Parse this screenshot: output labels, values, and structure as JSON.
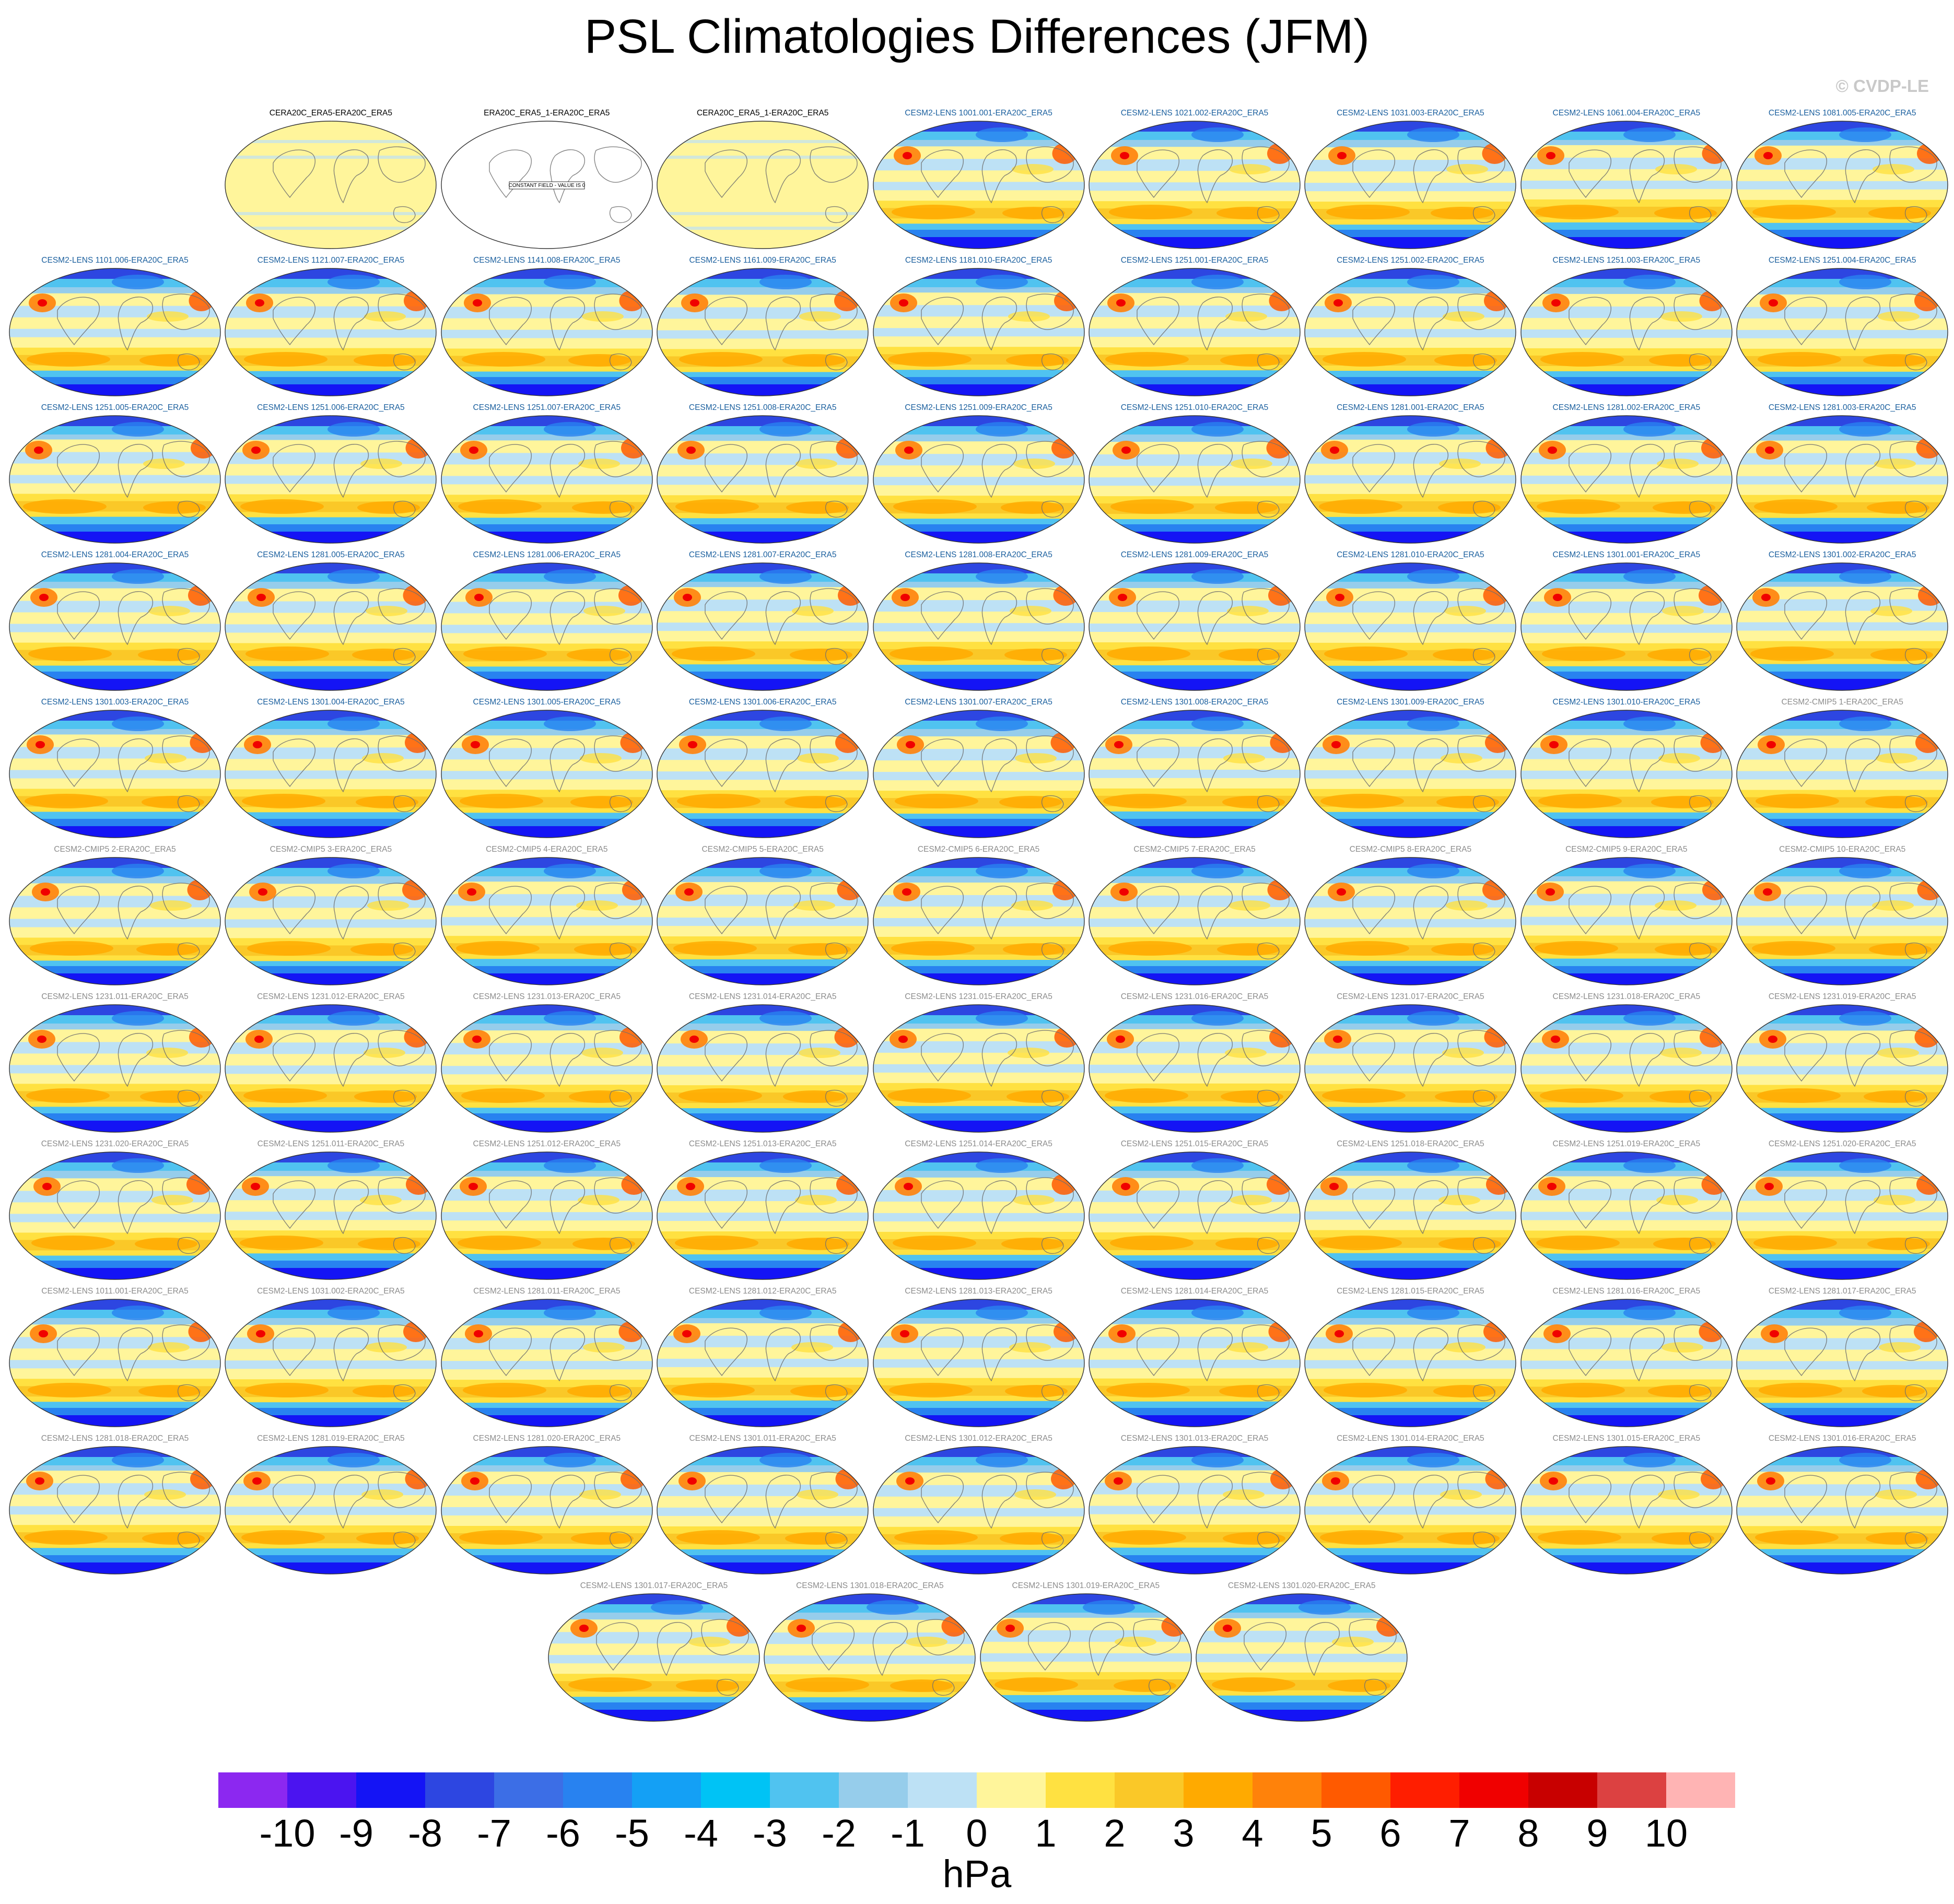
{
  "title": "PSL Climatologies Differences (JFM)",
  "watermark": "© CVDP-LE",
  "panels": [
    {
      "label": "CERA20C_ERA5-ERA20C_ERA5",
      "kind": "near-zero",
      "label_color": "#000000"
    },
    {
      "label": "ERA20C_ERA5_1-ERA20C_ERA5",
      "kind": "constant",
      "label_color": "#000000",
      "note": "CONSTANT FIELD - VALUE IS 0"
    },
    {
      "label": "CERA20C_ERA5_1-ERA20C_ERA5",
      "kind": "near-zero",
      "label_color": "#000000"
    },
    {
      "label": "CESM2-LENS 1001.001-ERA20C_ERA5",
      "kind": "diff",
      "label_color": "#1a5f9e"
    },
    {
      "label": "CESM2-LENS 1021.002-ERA20C_ERA5",
      "kind": "diff",
      "label_color": "#1a5f9e"
    },
    {
      "label": "CESM2-LENS 1031.003-ERA20C_ERA5",
      "kind": "diff",
      "label_color": "#1a5f9e"
    },
    {
      "label": "CESM2-LENS 1061.004-ERA20C_ERA5",
      "kind": "diff",
      "label_color": "#1a5f9e"
    },
    {
      "label": "CESM2-LENS 1081.005-ERA20C_ERA5",
      "kind": "diff",
      "label_color": "#1a5f9e"
    },
    {
      "label": "CESM2-LENS 1101.006-ERA20C_ERA5",
      "kind": "diff",
      "label_color": "#1a5f9e"
    },
    {
      "label": "CESM2-LENS 1121.007-ERA20C_ERA5",
      "kind": "diff",
      "label_color": "#1a5f9e"
    },
    {
      "label": "CESM2-LENS 1141.008-ERA20C_ERA5",
      "kind": "diff",
      "label_color": "#1a5f9e"
    },
    {
      "label": "CESM2-LENS 1161.009-ERA20C_ERA5",
      "kind": "diff",
      "label_color": "#1a5f9e"
    },
    {
      "label": "CESM2-LENS 1181.010-ERA20C_ERA5",
      "kind": "diff",
      "label_color": "#1a5f9e"
    },
    {
      "label": "CESM2-LENS 1251.001-ERA20C_ERA5",
      "kind": "diff",
      "label_color": "#1a5f9e"
    },
    {
      "label": "CESM2-LENS 1251.002-ERA20C_ERA5",
      "kind": "diff",
      "label_color": "#1a5f9e"
    },
    {
      "label": "CESM2-LENS 1251.003-ERA20C_ERA5",
      "kind": "diff",
      "label_color": "#1a5f9e"
    },
    {
      "label": "CESM2-LENS 1251.004-ERA20C_ERA5",
      "kind": "diff",
      "label_color": "#1a5f9e"
    },
    {
      "label": "CESM2-LENS 1251.005-ERA20C_ERA5",
      "kind": "diff",
      "label_color": "#1a5f9e"
    },
    {
      "label": "CESM2-LENS 1251.006-ERA20C_ERA5",
      "kind": "diff",
      "label_color": "#1a5f9e"
    },
    {
      "label": "CESM2-LENS 1251.007-ERA20C_ERA5",
      "kind": "diff",
      "label_color": "#1a5f9e"
    },
    {
      "label": "CESM2-LENS 1251.008-ERA20C_ERA5",
      "kind": "diff",
      "label_color": "#1a5f9e"
    },
    {
      "label": "CESM2-LENS 1251.009-ERA20C_ERA5",
      "kind": "diff",
      "label_color": "#1a5f9e"
    },
    {
      "label": "CESM2-LENS 1251.010-ERA20C_ERA5",
      "kind": "diff",
      "label_color": "#1a5f9e"
    },
    {
      "label": "CESM2-LENS 1281.001-ERA20C_ERA5",
      "kind": "diff",
      "label_color": "#1a5f9e"
    },
    {
      "label": "CESM2-LENS 1281.002-ERA20C_ERA5",
      "kind": "diff",
      "label_color": "#1a5f9e"
    },
    {
      "label": "CESM2-LENS 1281.003-ERA20C_ERA5",
      "kind": "diff",
      "label_color": "#1a5f9e"
    },
    {
      "label": "CESM2-LENS 1281.004-ERA20C_ERA5",
      "kind": "diff",
      "label_color": "#1a5f9e"
    },
    {
      "label": "CESM2-LENS 1281.005-ERA20C_ERA5",
      "kind": "diff",
      "label_color": "#1a5f9e"
    },
    {
      "label": "CESM2-LENS 1281.006-ERA20C_ERA5",
      "kind": "diff",
      "label_color": "#1a5f9e"
    },
    {
      "label": "CESM2-LENS 1281.007-ERA20C_ERA5",
      "kind": "diff",
      "label_color": "#1a5f9e"
    },
    {
      "label": "CESM2-LENS 1281.008-ERA20C_ERA5",
      "kind": "diff",
      "label_color": "#1a5f9e"
    },
    {
      "label": "CESM2-LENS 1281.009-ERA20C_ERA5",
      "kind": "diff",
      "label_color": "#1a5f9e"
    },
    {
      "label": "CESM2-LENS 1281.010-ERA20C_ERA5",
      "kind": "diff",
      "label_color": "#1a5f9e"
    },
    {
      "label": "CESM2-LENS 1301.001-ERA20C_ERA5",
      "kind": "diff",
      "label_color": "#1a5f9e"
    },
    {
      "label": "CESM2-LENS 1301.002-ERA20C_ERA5",
      "kind": "diff",
      "label_color": "#1a5f9e"
    },
    {
      "label": "CESM2-LENS 1301.003-ERA20C_ERA5",
      "kind": "diff",
      "label_color": "#1a5f9e"
    },
    {
      "label": "CESM2-LENS 1301.004-ERA20C_ERA5",
      "kind": "diff",
      "label_color": "#1a5f9e"
    },
    {
      "label": "CESM2-LENS 1301.005-ERA20C_ERA5",
      "kind": "diff",
      "label_color": "#1a5f9e"
    },
    {
      "label": "CESM2-LENS 1301.006-ERA20C_ERA5",
      "kind": "diff",
      "label_color": "#1a5f9e"
    },
    {
      "label": "CESM2-LENS 1301.007-ERA20C_ERA5",
      "kind": "diff",
      "label_color": "#1a5f9e"
    },
    {
      "label": "CESM2-LENS 1301.008-ERA20C_ERA5",
      "kind": "diff",
      "label_color": "#1a5f9e"
    },
    {
      "label": "CESM2-LENS 1301.009-ERA20C_ERA5",
      "kind": "diff",
      "label_color": "#1a5f9e"
    },
    {
      "label": "CESM2-LENS 1301.010-ERA20C_ERA5",
      "kind": "diff",
      "label_color": "#1a5f9e"
    },
    {
      "label": "CESM2-CMIP5 1-ERA20C_ERA5",
      "kind": "diff",
      "label_color": "#8c8c8c"
    },
    {
      "label": "CESM2-CMIP5 2-ERA20C_ERA5",
      "kind": "diff",
      "label_color": "#8c8c8c"
    },
    {
      "label": "CESM2-CMIP5 3-ERA20C_ERA5",
      "kind": "diff",
      "label_color": "#8c8c8c"
    },
    {
      "label": "CESM2-CMIP5 4-ERA20C_ERA5",
      "kind": "diff",
      "label_color": "#8c8c8c"
    },
    {
      "label": "CESM2-CMIP5 5-ERA20C_ERA5",
      "kind": "diff",
      "label_color": "#8c8c8c"
    },
    {
      "label": "CESM2-CMIP5 6-ERA20C_ERA5",
      "kind": "diff",
      "label_color": "#8c8c8c"
    },
    {
      "label": "CESM2-CMIP5 7-ERA20C_ERA5",
      "kind": "diff",
      "label_color": "#8c8c8c"
    },
    {
      "label": "CESM2-CMIP5 8-ERA20C_ERA5",
      "kind": "diff",
      "label_color": "#8c8c8c"
    },
    {
      "label": "CESM2-CMIP5 9-ERA20C_ERA5",
      "kind": "diff",
      "label_color": "#8c8c8c"
    },
    {
      "label": "CESM2-CMIP5 10-ERA20C_ERA5",
      "kind": "diff",
      "label_color": "#8c8c8c"
    },
    {
      "label": "CESM2-LENS 1231.011-ERA20C_ERA5",
      "kind": "diff",
      "label_color": "#8c8c8c"
    },
    {
      "label": "CESM2-LENS 1231.012-ERA20C_ERA5",
      "kind": "diff",
      "label_color": "#8c8c8c"
    },
    {
      "label": "CESM2-LENS 1231.013-ERA20C_ERA5",
      "kind": "diff",
      "label_color": "#8c8c8c"
    },
    {
      "label": "CESM2-LENS 1231.014-ERA20C_ERA5",
      "kind": "diff",
      "label_color": "#8c8c8c"
    },
    {
      "label": "CESM2-LENS 1231.015-ERA20C_ERA5",
      "kind": "diff",
      "label_color": "#8c8c8c"
    },
    {
      "label": "CESM2-LENS 1231.016-ERA20C_ERA5",
      "kind": "diff",
      "label_color": "#8c8c8c"
    },
    {
      "label": "CESM2-LENS 1231.017-ERA20C_ERA5",
      "kind": "diff",
      "label_color": "#8c8c8c"
    },
    {
      "label": "CESM2-LENS 1231.018-ERA20C_ERA5",
      "kind": "diff",
      "label_color": "#8c8c8c"
    },
    {
      "label": "CESM2-LENS 1231.019-ERA20C_ERA5",
      "kind": "diff",
      "label_color": "#8c8c8c"
    },
    {
      "label": "CESM2-LENS 1231.020-ERA20C_ERA5",
      "kind": "diff",
      "label_color": "#8c8c8c"
    },
    {
      "label": "CESM2-LENS 1251.011-ERA20C_ERA5",
      "kind": "diff",
      "label_color": "#8c8c8c"
    },
    {
      "label": "CESM2-LENS 1251.012-ERA20C_ERA5",
      "kind": "diff",
      "label_color": "#8c8c8c"
    },
    {
      "label": "CESM2-LENS 1251.013-ERA20C_ERA5",
      "kind": "diff",
      "label_color": "#8c8c8c"
    },
    {
      "label": "CESM2-LENS 1251.014-ERA20C_ERA5",
      "kind": "diff",
      "label_color": "#8c8c8c"
    },
    {
      "label": "CESM2-LENS 1251.015-ERA20C_ERA5",
      "kind": "diff",
      "label_color": "#8c8c8c"
    },
    {
      "label": "CESM2-LENS 1251.018-ERA20C_ERA5",
      "kind": "diff",
      "label_color": "#8c8c8c"
    },
    {
      "label": "CESM2-LENS 1251.019-ERA20C_ERA5",
      "kind": "diff",
      "label_color": "#8c8c8c"
    },
    {
      "label": "CESM2-LENS 1251.020-ERA20C_ERA5",
      "kind": "diff",
      "label_color": "#8c8c8c"
    },
    {
      "label": "CESM2-LENS 1011.001-ERA20C_ERA5",
      "kind": "diff",
      "label_color": "#8c8c8c"
    },
    {
      "label": "CESM2-LENS 1031.002-ERA20C_ERA5",
      "kind": "diff",
      "label_color": "#8c8c8c"
    },
    {
      "label": "CESM2-LENS 1281.011-ERA20C_ERA5",
      "kind": "diff",
      "label_color": "#8c8c8c"
    },
    {
      "label": "CESM2-LENS 1281.012-ERA20C_ERA5",
      "kind": "diff",
      "label_color": "#8c8c8c"
    },
    {
      "label": "CESM2-LENS 1281.013-ERA20C_ERA5",
      "kind": "diff",
      "label_color": "#8c8c8c"
    },
    {
      "label": "CESM2-LENS 1281.014-ERA20C_ERA5",
      "kind": "diff",
      "label_color": "#8c8c8c"
    },
    {
      "label": "CESM2-LENS 1281.015-ERA20C_ERA5",
      "kind": "diff",
      "label_color": "#8c8c8c"
    },
    {
      "label": "CESM2-LENS 1281.016-ERA20C_ERA5",
      "kind": "diff",
      "label_color": "#8c8c8c"
    },
    {
      "label": "CESM2-LENS 1281.017-ERA20C_ERA5",
      "kind": "diff",
      "label_color": "#8c8c8c"
    },
    {
      "label": "CESM2-LENS 1281.018-ERA20C_ERA5",
      "kind": "diff",
      "label_color": "#8c8c8c"
    },
    {
      "label": "CESM2-LENS 1281.019-ERA20C_ERA5",
      "kind": "diff",
      "label_color": "#8c8c8c"
    },
    {
      "label": "CESM2-LENS 1281.020-ERA20C_ERA5",
      "kind": "diff",
      "label_color": "#8c8c8c"
    },
    {
      "label": "CESM2-LENS 1301.011-ERA20C_ERA5",
      "kind": "diff",
      "label_color": "#8c8c8c"
    },
    {
      "label": "CESM2-LENS 1301.012-ERA20C_ERA5",
      "kind": "diff",
      "label_color": "#8c8c8c"
    },
    {
      "label": "CESM2-LENS 1301.013-ERA20C_ERA5",
      "kind": "diff",
      "label_color": "#8c8c8c"
    },
    {
      "label": "CESM2-LENS 1301.014-ERA20C_ERA5",
      "kind": "diff",
      "label_color": "#8c8c8c"
    },
    {
      "label": "CESM2-LENS 1301.015-ERA20C_ERA5",
      "kind": "diff",
      "label_color": "#8c8c8c"
    },
    {
      "label": "CESM2-LENS 1301.016-ERA20C_ERA5",
      "kind": "diff",
      "label_color": "#8c8c8c"
    },
    {
      "label": "CESM2-LENS 1301.017-ERA20C_ERA5",
      "kind": "diff",
      "label_color": "#8c8c8c"
    },
    {
      "label": "CESM2-LENS 1301.018-ERA20C_ERA5",
      "kind": "diff",
      "label_color": "#8c8c8c"
    },
    {
      "label": "CESM2-LENS 1301.019-ERA20C_ERA5",
      "kind": "diff",
      "label_color": "#8c8c8c"
    },
    {
      "label": "CESM2-LENS 1301.020-ERA20C_ERA5",
      "kind": "diff",
      "label_color": "#8c8c8c"
    }
  ],
  "colorbar": {
    "units": "hPa",
    "tick_labels": [
      "-10",
      "-9",
      "-8",
      "-7",
      "-6",
      "-5",
      "-4",
      "-3",
      "-2",
      "-1",
      "0",
      "1",
      "2",
      "3",
      "4",
      "5",
      "6",
      "7",
      "8",
      "9",
      "10"
    ],
    "colors": [
      "#8c28f0",
      "#4b14f0",
      "#1414f5",
      "#2d46e1",
      "#3c6ee6",
      "#2882f0",
      "#14a0f5",
      "#00c3f5",
      "#50c3f0",
      "#96cdeb",
      "#bde1f5",
      "#fff59b",
      "#ffe141",
      "#fac828",
      "#ffaa00",
      "#ff820a",
      "#ff5a00",
      "#ff1e00",
      "#f00000",
      "#c80000",
      "#dc4141",
      "#ffb4b4"
    ]
  }
}
